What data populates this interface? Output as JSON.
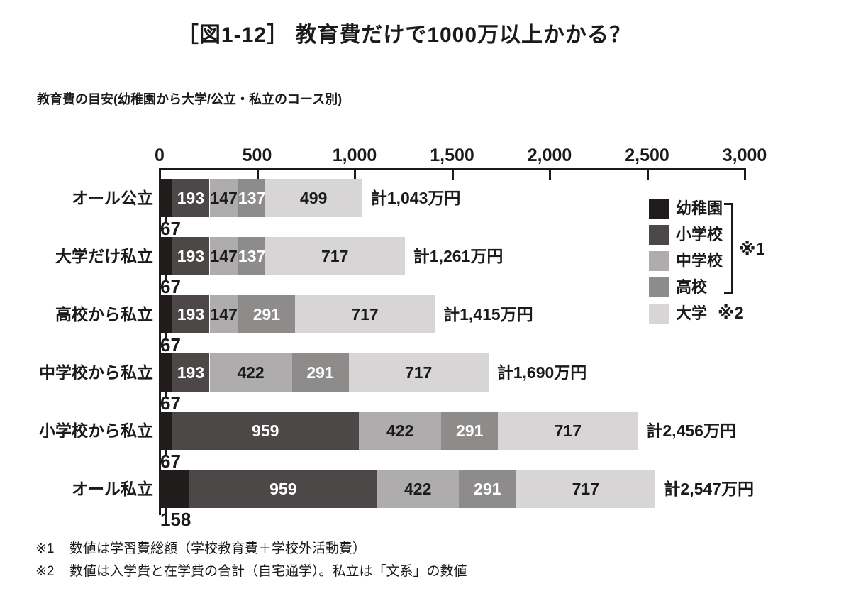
{
  "title": "［図1-12］ 教育費だけで1000万以上かかる？",
  "subtitle": "教育費の目安(幼稚園から大学/公立・私立のコース別)",
  "chart_data": {
    "type": "bar",
    "orientation": "horizontal",
    "stacked": true,
    "unit": "万円",
    "x_axis": {
      "min": 0,
      "max": 3000,
      "tick_interval": 500,
      "tick_labels": [
        "0",
        "500",
        "1,000",
        "1,500",
        "2,000",
        "2,500",
        "3,000"
      ]
    },
    "categories": [
      "オール公立",
      "大学だけ私立",
      "高校から私立",
      "中学校から私立",
      "小学校から私立",
      "オール私立"
    ],
    "series": [
      {
        "name": "幼稚園",
        "color": "#201c1c",
        "text_color": "#1a1a1a",
        "label_placement": "below",
        "values": [
          67,
          67,
          67,
          67,
          67,
          158
        ]
      },
      {
        "name": "小学校",
        "color": "#4c4848",
        "text_color": "#ffffff",
        "label_placement": "inside",
        "values": [
          193,
          193,
          193,
          193,
          959,
          959
        ]
      },
      {
        "name": "中学校",
        "color": "#aeacac",
        "text_color": "#1a1a1a",
        "label_placement": "inside",
        "values": [
          147,
          147,
          147,
          422,
          422,
          422
        ]
      },
      {
        "name": "高校",
        "color": "#8e8b8b",
        "text_color": "#ffffff",
        "label_placement": "inside",
        "values": [
          137,
          137,
          291,
          291,
          291,
          291
        ]
      },
      {
        "name": "大学",
        "color": "#d7d5d5",
        "text_color": "#1a1a1a",
        "label_placement": "inside",
        "values": [
          499,
          717,
          717,
          717,
          717,
          717
        ]
      }
    ],
    "totals_value": [
      1043,
      1261,
      1415,
      1690,
      2456,
      2547
    ],
    "totals_label": [
      "計1,043万円",
      "計1,261万円",
      "計1,415万円",
      "計1,690万円",
      "計2,456万円",
      "計2,547万円"
    ],
    "legend": {
      "items": [
        {
          "label": "幼稚園"
        },
        {
          "label": "小学校"
        },
        {
          "label": "中学校"
        },
        {
          "label": "高校"
        },
        {
          "label": "大学",
          "note": "※2"
        }
      ],
      "bracket_note": "※1",
      "position": "right"
    },
    "grid": false
  },
  "footnotes": [
    {
      "mark": "※1",
      "text": "数値は学習費総額（学校教育費＋学校外活動費）"
    },
    {
      "mark": "※2",
      "text": "数値は入学費と在学費の合計（自宅通学）。私立は「文系」の数値"
    }
  ]
}
